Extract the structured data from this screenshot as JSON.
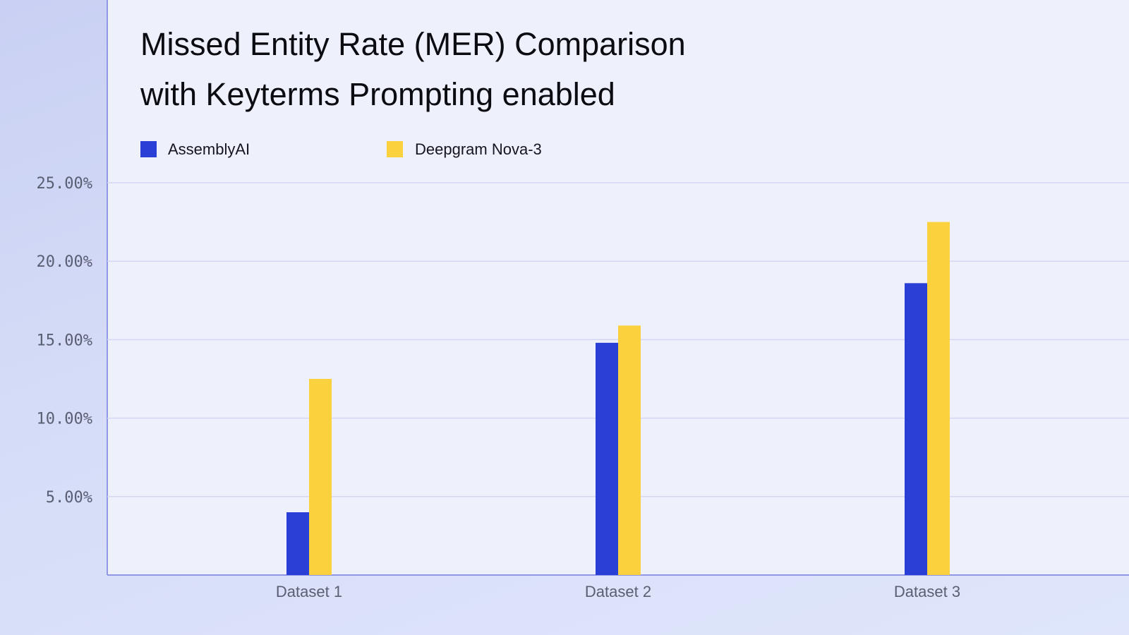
{
  "chart_data": {
    "type": "bar",
    "title": "Missed Entity Rate (MER) Comparison",
    "subtitle": "with Keyterms Prompting enabled",
    "categories": [
      "Dataset 1",
      "Dataset 2",
      "Dataset 3"
    ],
    "series": [
      {
        "name": "AssemblyAI",
        "color": "#2a3fd6",
        "values": [
          4.0,
          14.8,
          18.6
        ]
      },
      {
        "name": "Deepgram Nova-3",
        "color": "#fbd23e",
        "values": [
          12.5,
          15.9,
          22.5
        ]
      }
    ],
    "ylim": [
      0,
      25
    ],
    "yticks": [
      5,
      10,
      15,
      20,
      25
    ],
    "ytick_labels": [
      "5.00%",
      "10.00%",
      "15.00%",
      "20.00%",
      "25.00%"
    ],
    "grid": true,
    "legend_position": "top-left",
    "xlabel": "",
    "ylabel": ""
  }
}
